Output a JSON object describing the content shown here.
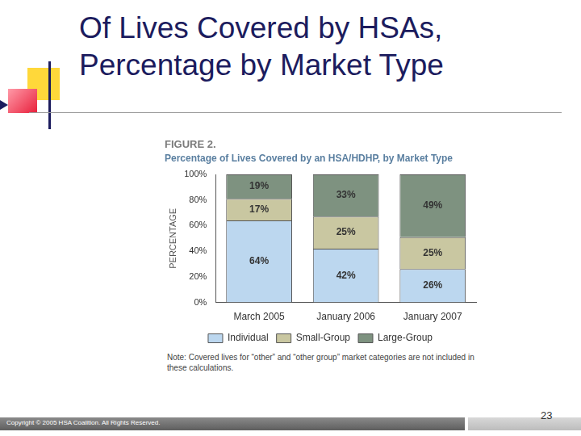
{
  "slide": {
    "title": [
      "Of Lives Covered by HSAs,",
      "Percentage by Market Type"
    ],
    "copyright": "Copyright © 2005 HSA Coalition. All Rights Reserved.",
    "page_number": 23
  },
  "chart_data": {
    "type": "bar",
    "stacked": true,
    "title": "FIGURE 2.",
    "subtitle": "Percentage of Lives Covered by an HSA/HDHP, by Market Type",
    "y_label": "PERCENTAGE",
    "note": "Note: Covered lives for “other” and “other group” market categories are not included in these calculations.",
    "categories": [
      "March 2005",
      "January 2006",
      "January 2007"
    ],
    "series": [
      {
        "name": "Individual",
        "color": "#bcd7ef",
        "values": [
          64,
          42,
          26
        ],
        "value_labels": [
          "64%",
          "42%",
          "26%"
        ]
      },
      {
        "name": "Small-Group",
        "color": "#c9c7a1",
        "values": [
          17,
          25,
          25
        ],
        "value_labels": [
          "17%",
          "25%",
          "25%"
        ]
      },
      {
        "name": "Large-Group",
        "color": "#7e9280",
        "values": [
          19,
          33,
          49
        ],
        "value_labels": [
          "19%",
          "33%",
          "49%"
        ]
      }
    ],
    "ylim": [
      0,
      100
    ],
    "yticks": [
      {
        "value": 0,
        "label": "0%"
      },
      {
        "value": 20,
        "label": "20%"
      },
      {
        "value": 40,
        "label": "40%"
      },
      {
        "value": 60,
        "label": "60%"
      },
      {
        "value": 80,
        "label": "80%"
      },
      {
        "value": 100,
        "label": "100%"
      }
    ],
    "grid": false,
    "legend": "bottom",
    "data_labels": true
  }
}
